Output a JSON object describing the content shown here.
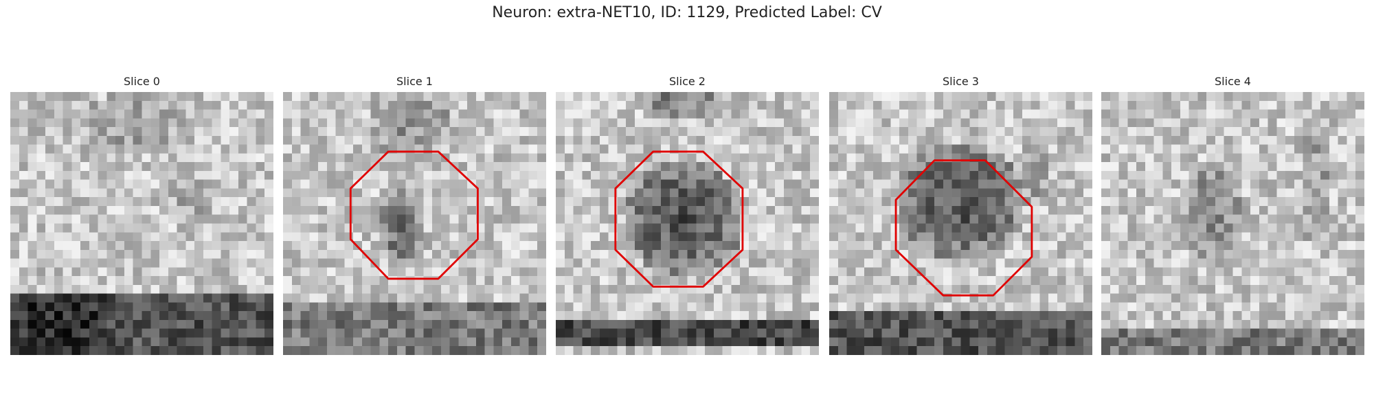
{
  "title": "Neuron: extra-NET10, ID: 1129, Predicted Label: CV",
  "panels": [
    {
      "title": "Slice 0"
    },
    {
      "title": "Slice 1"
    },
    {
      "title": "Slice 2"
    },
    {
      "title": "Slice 3"
    },
    {
      "title": "Slice 4"
    }
  ]
}
